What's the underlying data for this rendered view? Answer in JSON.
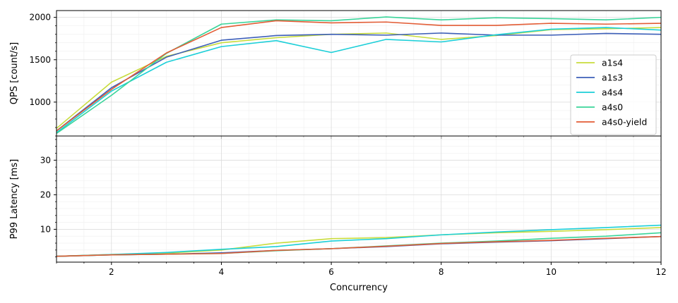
{
  "chart_data": [
    {
      "type": "line",
      "panel": "top",
      "xlabel": "",
      "ylabel": "QPS [count/s]",
      "xlim": [
        1,
        12
      ],
      "ylim": [
        600,
        2080
      ],
      "yticks": [
        1000,
        1500,
        2000
      ],
      "x": [
        1,
        2,
        3,
        4,
        5,
        6,
        7,
        8,
        9,
        10,
        11,
        12
      ],
      "grid": true,
      "legend": "center-right",
      "series": [
        {
          "name": "a1s4",
          "color": "#c8dc3c",
          "values": [
            690,
            1235,
            1540,
            1700,
            1760,
            1800,
            1815,
            1740,
            1785,
            1855,
            1865,
            1880
          ]
        },
        {
          "name": "a1s3",
          "color": "#3d5fb8",
          "values": [
            660,
            1170,
            1530,
            1730,
            1785,
            1800,
            1790,
            1815,
            1790,
            1790,
            1810,
            1800
          ]
        },
        {
          "name": "a4s4",
          "color": "#1ccfd8",
          "values": [
            640,
            1130,
            1470,
            1655,
            1725,
            1585,
            1740,
            1710,
            1795,
            1860,
            1880,
            1850
          ]
        },
        {
          "name": "a4s0",
          "color": "#3ad49a",
          "values": [
            630,
            1080,
            1575,
            1920,
            1970,
            1960,
            2005,
            1970,
            1995,
            1985,
            1970,
            2000
          ]
        },
        {
          "name": "a4s0-yield",
          "color": "#e25c35",
          "values": [
            660,
            1150,
            1580,
            1880,
            1960,
            1935,
            1945,
            1905,
            1905,
            1930,
            1920,
            1930
          ]
        }
      ]
    },
    {
      "type": "line",
      "panel": "bottom",
      "xlabel": "Concurrency",
      "ylabel": "P99 Latency [ms]",
      "xlim": [
        1,
        12
      ],
      "ylim": [
        0.5,
        37
      ],
      "xticks": [
        2,
        4,
        6,
        8,
        10,
        12
      ],
      "yticks": [
        10,
        20,
        30
      ],
      "x": [
        1,
        2,
        3,
        4,
        5,
        6,
        7,
        8,
        9,
        10,
        11,
        12
      ],
      "grid": true,
      "series": [
        {
          "name": "a1s4",
          "color": "#c8dc3c",
          "values": [
            2.2,
            2.7,
            3.1,
            4.0,
            6.0,
            7.3,
            7.6,
            8.4,
            9.0,
            9.4,
            9.9,
            10.5
          ]
        },
        {
          "name": "a1s3",
          "color": "#3d5fb8",
          "values": [
            2.2,
            2.6,
            2.8,
            3.2,
            3.9,
            4.4,
            5.0,
            5.8,
            6.3,
            6.7,
            7.3,
            7.9
          ]
        },
        {
          "name": "a4s4",
          "color": "#1ccfd8",
          "values": [
            2.2,
            2.7,
            3.3,
            4.2,
            5.0,
            6.6,
            7.3,
            8.4,
            9.2,
            9.9,
            10.5,
            11.2
          ]
        },
        {
          "name": "a4s0",
          "color": "#3ad49a",
          "values": [
            2.2,
            2.6,
            2.8,
            3.0,
            3.8,
            4.4,
            5.2,
            6.0,
            6.6,
            7.4,
            8.0,
            9.0
          ]
        },
        {
          "name": "a4s0-yield",
          "color": "#e25c35",
          "values": [
            2.2,
            2.6,
            2.8,
            3.0,
            3.9,
            4.4,
            5.1,
            5.9,
            6.4,
            6.8,
            7.4,
            7.9
          ]
        }
      ]
    }
  ]
}
